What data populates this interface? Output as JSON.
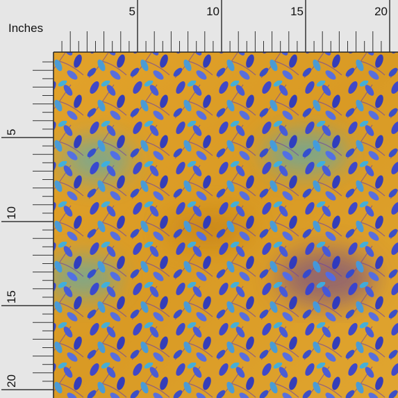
{
  "ruler": {
    "unit_label": "Inches",
    "top_labels": [
      "5",
      "10",
      "15",
      "20"
    ],
    "left_labels": [
      "5",
      "10",
      "15",
      "20"
    ]
  }
}
